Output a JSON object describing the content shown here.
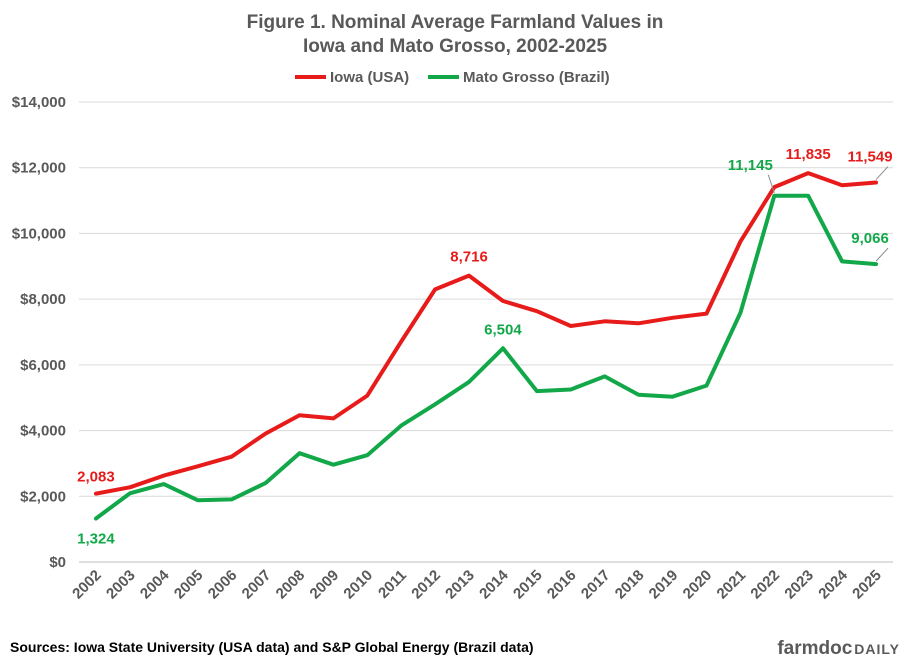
{
  "chart_data": {
    "type": "line",
    "title": [
      "Figure 1. Nominal Average Farmland Values in",
      "Iowa and Mato Grosso, 2002-2025"
    ],
    "x": [
      "2002",
      "2003",
      "2004",
      "2005",
      "2006",
      "2007",
      "2008",
      "2009",
      "2010",
      "2011",
      "2012",
      "2013",
      "2014",
      "2015",
      "2016",
      "2017",
      "2018",
      "2019",
      "2020",
      "2021",
      "2022",
      "2023",
      "2024",
      "2025"
    ],
    "series": [
      {
        "name": "Iowa (USA)",
        "color": "#e81b1b",
        "values": [
          2083,
          2275,
          2629,
          2914,
          3204,
          3908,
          4468,
          4371,
          5064,
          6708,
          8296,
          8716,
          7943,
          7633,
          7183,
          7326,
          7264,
          7432,
          7559,
          9751,
          11411,
          11835,
          11467,
          11549
        ]
      },
      {
        "name": "Mato Grosso (Brazil)",
        "color": "#12a84a",
        "values": [
          1324,
          2090,
          2370,
          1880,
          1905,
          2400,
          3310,
          2960,
          3250,
          4150,
          4800,
          5480,
          6504,
          5200,
          5250,
          5650,
          5090,
          5030,
          5370,
          7580,
          11145,
          11145,
          9150,
          9066
        ]
      }
    ],
    "data_labels": [
      {
        "series": 0,
        "x": "2002",
        "text": "2,083"
      },
      {
        "series": 0,
        "x": "2013",
        "text": "8,716"
      },
      {
        "series": 0,
        "x": "2023",
        "text": "11,835"
      },
      {
        "series": 0,
        "x": "2025",
        "text": "11,549"
      },
      {
        "series": 1,
        "x": "2002",
        "text": "1,324"
      },
      {
        "series": 1,
        "x": "2014",
        "text": "6,504"
      },
      {
        "series": 1,
        "x": "2022",
        "text": "11,145"
      },
      {
        "series": 1,
        "x": "2025",
        "text": "9,066"
      }
    ],
    "yticks": [
      "$0",
      "$2,000",
      "$4,000",
      "$6,000",
      "$8,000",
      "$10,000",
      "$12,000",
      "$14,000"
    ],
    "ylim": [
      0,
      14000
    ],
    "ytick_step": 2000,
    "grid": true,
    "legend": "top-center",
    "xlabel": "",
    "ylabel": ""
  },
  "footer": {
    "source": "Sources: Iowa State University (USA data) and S&P Global Energy (Brazil data)",
    "logo_part1": "farmdoc",
    "logo_part2": "DAILY"
  }
}
